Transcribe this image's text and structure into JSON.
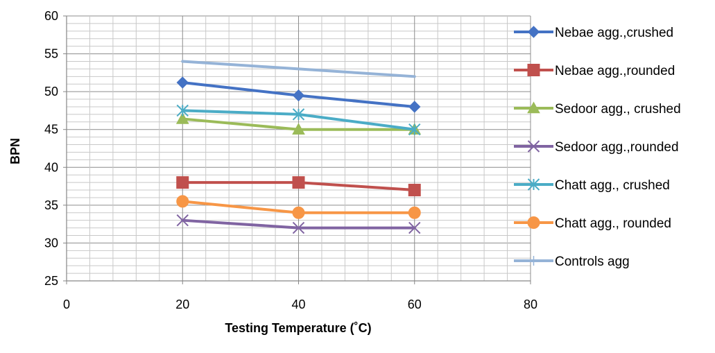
{
  "chart_data": {
    "type": "line",
    "title": "",
    "xlabel": "Testing Temperature (˚C)",
    "ylabel": "BPN",
    "xlim": [
      0,
      80
    ],
    "ylim": [
      25,
      60
    ],
    "x_ticks": [
      0,
      20,
      40,
      60,
      80
    ],
    "y_ticks": [
      25,
      30,
      35,
      40,
      45,
      50,
      55,
      60
    ],
    "grid": true,
    "legend_position": "right",
    "x": [
      20,
      40,
      60
    ],
    "series": [
      {
        "name": "Nebae agg.,crushed",
        "values": [
          51.2,
          49.5,
          48.0
        ],
        "color": "#4472C4",
        "marker": "diamond"
      },
      {
        "name": "Nebae agg.,rounded",
        "values": [
          38.0,
          38.0,
          37.0
        ],
        "color": "#C0504D",
        "marker": "square"
      },
      {
        "name": "Sedoor agg., crushed",
        "values": [
          46.4,
          45.0,
          45.0
        ],
        "color": "#9BBB59",
        "marker": "triangle"
      },
      {
        "name": "Sedoor agg.,rounded",
        "values": [
          33.0,
          32.0,
          32.0
        ],
        "color": "#8064A2",
        "marker": "x"
      },
      {
        "name": "Chatt agg., crushed",
        "values": [
          47.5,
          47.0,
          45.0
        ],
        "color": "#4BACC6",
        "marker": "star"
      },
      {
        "name": "Chatt agg., rounded",
        "values": [
          35.5,
          34.0,
          34.0
        ],
        "color": "#F79646",
        "marker": "circle"
      },
      {
        "name": "Controls agg",
        "values": [
          54.0,
          53.0,
          52.0
        ],
        "color": "#95B3D7",
        "marker": "plus"
      }
    ]
  }
}
